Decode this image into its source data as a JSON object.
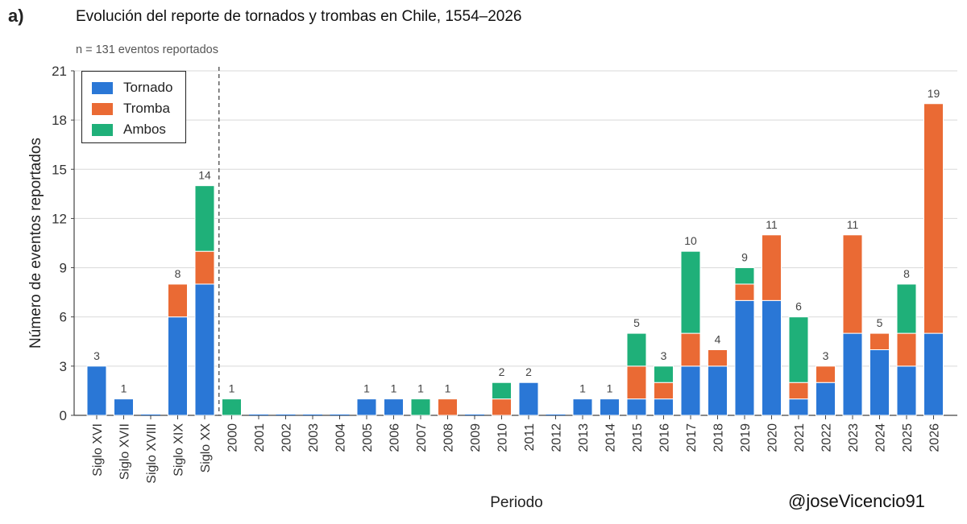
{
  "panel_label": "a)",
  "handle": "@joseVicencio91",
  "colors": {
    "tornado": "#2a77d6",
    "tromba": "#ea6a34",
    "ambos": "#1fb079",
    "grid": "#d9d9d9",
    "axis": "#444444",
    "divider": "#555555"
  },
  "chart_data": {
    "type": "bar",
    "stacked": true,
    "title": "Evolución del reporte de tornados y trombas en Chile, 1554–2026",
    "subtitle": "n = 131 eventos reportados",
    "xlabel": "Periodo",
    "ylabel": "Número de eventos reportados",
    "ylim": [
      0,
      21
    ],
    "yticks": [
      0,
      3,
      6,
      9,
      12,
      15,
      18,
      21
    ],
    "grid": "horizontal",
    "legend_position": "top-left",
    "categories": [
      "Siglo XVI",
      "Siglo XVII",
      "Siglo XVIII",
      "Siglo XIX",
      "Siglo XX",
      "2000",
      "2001",
      "2002",
      "2003",
      "2004",
      "2005",
      "2006",
      "2007",
      "2008",
      "2009",
      "2010",
      "2011",
      "2012",
      "2013",
      "2014",
      "2015",
      "2016",
      "2017",
      "2018",
      "2019",
      "2020",
      "2021",
      "2022",
      "2023",
      "2024",
      "2025",
      "2026"
    ],
    "divider_after": "Siglo XX",
    "series": [
      {
        "name": "Tornado",
        "color_key": "tornado",
        "values": [
          3,
          1,
          0,
          6,
          8,
          0,
          0,
          0,
          0,
          0,
          1,
          1,
          0,
          0,
          0,
          0,
          2,
          0,
          1,
          1,
          1,
          1,
          3,
          3,
          7,
          7,
          1,
          2,
          5,
          4,
          3,
          5
        ]
      },
      {
        "name": "Tromba",
        "color_key": "tromba",
        "values": [
          0,
          0,
          0,
          2,
          2,
          0,
          0,
          0,
          0,
          0,
          0,
          0,
          0,
          1,
          0,
          1,
          0,
          0,
          0,
          0,
          2,
          1,
          2,
          1,
          1,
          4,
          1,
          1,
          6,
          1,
          2,
          14
        ]
      },
      {
        "name": "Ambos",
        "color_key": "ambos",
        "values": [
          0,
          0,
          0,
          0,
          4,
          1,
          0,
          0,
          0,
          0,
          0,
          0,
          1,
          0,
          0,
          1,
          0,
          0,
          0,
          0,
          2,
          1,
          5,
          0,
          1,
          0,
          4,
          0,
          0,
          0,
          3,
          0
        ]
      }
    ],
    "totals": [
      3,
      1,
      0,
      8,
      14,
      1,
      0,
      0,
      0,
      0,
      1,
      1,
      1,
      1,
      0,
      2,
      2,
      0,
      1,
      1,
      5,
      3,
      10,
      4,
      9,
      11,
      6,
      3,
      11,
      5,
      8,
      19
    ]
  }
}
